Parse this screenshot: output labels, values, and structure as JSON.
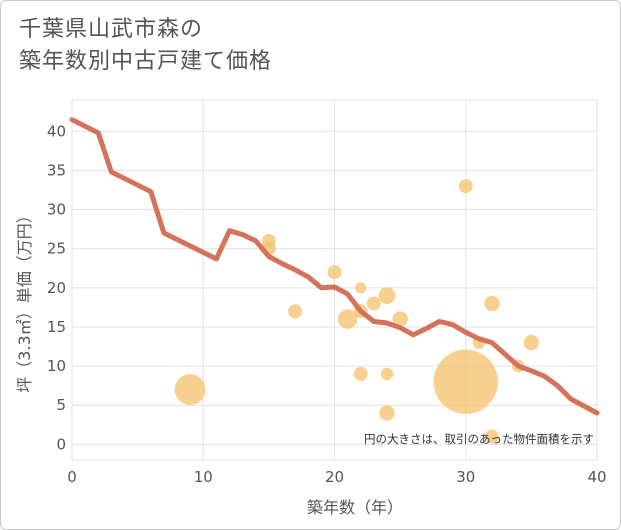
{
  "title_lines": [
    "千葉県山武市森の",
    "築年数別中古戸建て価格"
  ],
  "chart_data": {
    "type": "scatter",
    "xlabel": "築年数（年）",
    "ylabel": "坪（3.3㎡）単価（万円）",
    "xlim": [
      0,
      40
    ],
    "ylim": [
      -2,
      44
    ],
    "xticks": [
      0,
      10,
      20,
      30,
      40
    ],
    "yticks": [
      0,
      5,
      10,
      15,
      20,
      25,
      30,
      35,
      40
    ],
    "annotation": "円の大きさは、取引のあった物件面積を示す",
    "colors": {
      "points": "#f5c26b",
      "line": "#d4725a",
      "grid": "#dde3ea"
    },
    "points": [
      {
        "x": 9,
        "y": 7,
        "size": 2.2
      },
      {
        "x": 15,
        "y": 26,
        "size": 1
      },
      {
        "x": 15,
        "y": 25,
        "size": 1
      },
      {
        "x": 17,
        "y": 17,
        "size": 1
      },
      {
        "x": 20,
        "y": 22,
        "size": 1
      },
      {
        "x": 21,
        "y": 16,
        "size": 1.4
      },
      {
        "x": 22,
        "y": 20,
        "size": 0.8
      },
      {
        "x": 22,
        "y": 17,
        "size": 1
      },
      {
        "x": 22,
        "y": 9,
        "size": 1
      },
      {
        "x": 23,
        "y": 18,
        "size": 1
      },
      {
        "x": 24,
        "y": 19,
        "size": 1.2
      },
      {
        "x": 24,
        "y": 9,
        "size": 0.9
      },
      {
        "x": 24,
        "y": 4,
        "size": 1.1
      },
      {
        "x": 25,
        "y": 16,
        "size": 1.1
      },
      {
        "x": 30,
        "y": 33,
        "size": 1
      },
      {
        "x": 30,
        "y": 8,
        "size": 4.6
      },
      {
        "x": 31,
        "y": 13,
        "size": 0.9
      },
      {
        "x": 32,
        "y": 18,
        "size": 1.1
      },
      {
        "x": 32,
        "y": 1,
        "size": 1
      },
      {
        "x": 34,
        "y": 10,
        "size": 0.9
      },
      {
        "x": 35,
        "y": 13,
        "size": 1.1
      }
    ],
    "trend_line": {
      "x": [
        0,
        2,
        3,
        6,
        7,
        11,
        12,
        13,
        14,
        15,
        16,
        17,
        18,
        19,
        20,
        21,
        22,
        23,
        24,
        25,
        26,
        27,
        28,
        29,
        30,
        31,
        32,
        33,
        34,
        35,
        36,
        37,
        38,
        39,
        40
      ],
      "y": [
        41.5,
        39.8,
        34.8,
        32.3,
        27,
        23.7,
        27.3,
        26.8,
        26,
        24,
        23.1,
        22.3,
        21.4,
        20,
        20.1,
        19.2,
        17,
        15.7,
        15.5,
        14.9,
        14,
        14.8,
        15.7,
        15.3,
        14.3,
        13.5,
        13,
        11.5,
        10,
        9.4,
        8.7,
        7.5,
        5.8,
        4.9,
        4
      ]
    }
  }
}
